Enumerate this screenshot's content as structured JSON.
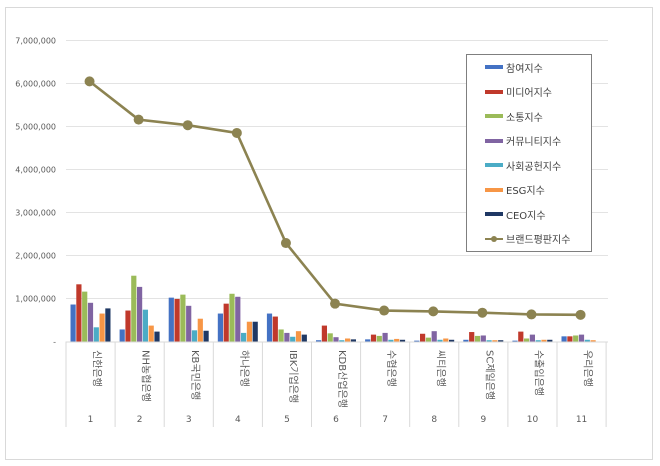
{
  "chart_data": {
    "type": "bar+line",
    "title": "",
    "xlabel": "",
    "ylabel": "",
    "ylim": [
      0,
      7000000
    ],
    "yticks": [
      "-",
      "1,000,000",
      "2,000,000",
      "3,000,000",
      "4,000,000",
      "5,000,000",
      "6,000,000",
      "7,000,000"
    ],
    "grid": true,
    "legend_position": "right-inside",
    "categories": [
      "신한은행",
      "NH농협은행",
      "KB국민은행",
      "하나은행",
      "IBK기업은행",
      "KDB산업은행",
      "수협은행",
      "씨티은행",
      "SC제일은행",
      "수출입은행",
      "우리은행"
    ],
    "category_numbers": [
      "1",
      "2",
      "3",
      "4",
      "5",
      "6",
      "7",
      "8",
      "9",
      "10",
      "11"
    ],
    "series": [
      {
        "name": "참여지수",
        "type": "bar",
        "color": "#4472c4",
        "values": [
          860000,
          280000,
          1020000,
          650000,
          650000,
          30000,
          50000,
          20000,
          40000,
          20000,
          120000
        ]
      },
      {
        "name": "미디어지수",
        "type": "bar",
        "color": "#c0392b",
        "values": [
          1330000,
          720000,
          990000,
          880000,
          580000,
          370000,
          160000,
          180000,
          220000,
          230000,
          120000
        ]
      },
      {
        "name": "소통지수",
        "type": "bar",
        "color": "#9bbb59",
        "values": [
          1160000,
          1530000,
          1090000,
          1110000,
          280000,
          190000,
          130000,
          90000,
          130000,
          70000,
          140000
        ]
      },
      {
        "name": "커뮤니티지수",
        "type": "bar",
        "color": "#8064a2",
        "values": [
          900000,
          1270000,
          830000,
          1040000,
          200000,
          100000,
          200000,
          240000,
          140000,
          160000,
          160000
        ]
      },
      {
        "name": "사회공헌지수",
        "type": "bar",
        "color": "#4bacc6",
        "values": [
          330000,
          740000,
          260000,
          200000,
          110000,
          30000,
          40000,
          40000,
          30000,
          30000,
          40000
        ]
      },
      {
        "name": "ESG지수",
        "type": "bar",
        "color": "#f79646",
        "values": [
          650000,
          370000,
          530000,
          460000,
          240000,
          70000,
          60000,
          70000,
          30000,
          40000,
          30000
        ]
      },
      {
        "name": "CEO지수",
        "type": "bar",
        "color": "#1f3864",
        "values": [
          770000,
          230000,
          250000,
          460000,
          160000,
          50000,
          40000,
          40000,
          30000,
          40000,
          0
        ]
      },
      {
        "name": "브랜드평판지수",
        "type": "line",
        "color": "#8c8351",
        "values": [
          6050000,
          5160000,
          5030000,
          4850000,
          2290000,
          880000,
          720000,
          700000,
          670000,
          630000,
          620000
        ]
      }
    ]
  }
}
